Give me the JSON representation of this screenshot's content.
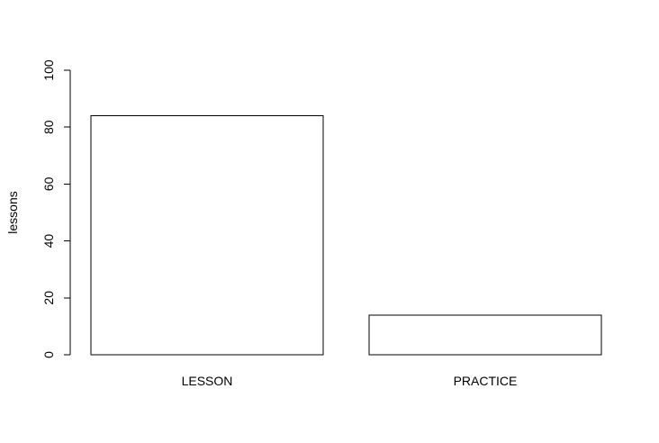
{
  "chart_data": {
    "type": "bar",
    "categories": [
      "LESSON",
      "PRACTICE"
    ],
    "values": [
      84,
      14
    ],
    "ylabel": "lessons",
    "xlabel": "",
    "ylim": [
      0,
      100
    ],
    "yticks": [
      0,
      20,
      40,
      60,
      80,
      100
    ],
    "grid": false,
    "bar_fill": "#ffffff",
    "bar_stroke": "#000000"
  }
}
